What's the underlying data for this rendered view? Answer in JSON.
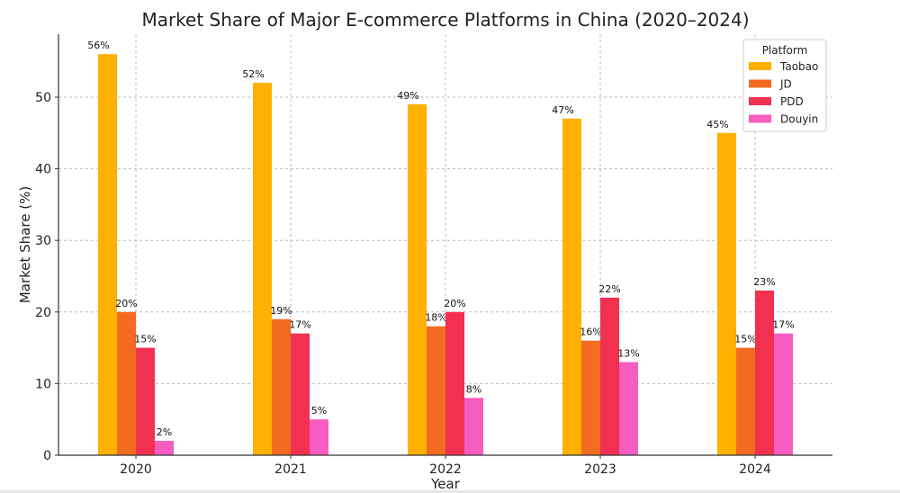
{
  "chart_data": {
    "type": "bar",
    "title": "Market Share of Major E-commerce Platforms in China (2020–2024)",
    "xlabel": "Year",
    "ylabel": "Market Share (%)",
    "categories": [
      "2020",
      "2021",
      "2022",
      "2023",
      "2024"
    ],
    "ylim": [
      0,
      58
    ],
    "yticks": [
      0,
      10,
      20,
      30,
      40,
      50
    ],
    "grid": true,
    "legend": {
      "title": "Platform",
      "placement": "top-right"
    },
    "series": [
      {
        "name": "Taobao",
        "color": "#FFB000",
        "values": [
          56,
          52,
          49,
          47,
          45
        ]
      },
      {
        "name": "JD",
        "color": "#F26B21",
        "values": [
          20,
          19,
          18,
          16,
          15
        ]
      },
      {
        "name": "PDD",
        "color": "#F2304F",
        "values": [
          15,
          17,
          20,
          22,
          23
        ]
      },
      {
        "name": "Douyin",
        "color": "#F75CC0",
        "values": [
          2,
          5,
          8,
          13,
          17
        ]
      }
    ],
    "label_suffix": "%"
  }
}
